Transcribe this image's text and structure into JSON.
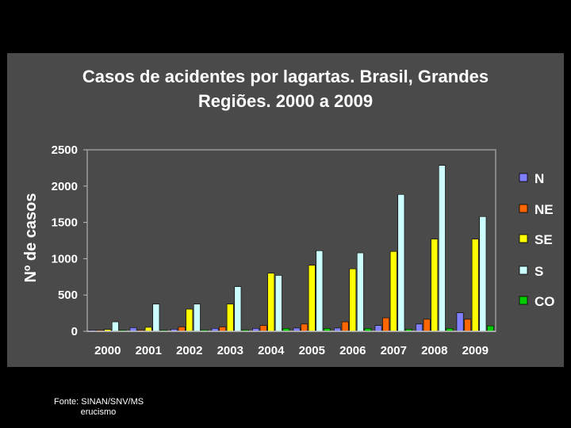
{
  "chart_data": {
    "type": "bar",
    "title_lines": [
      "Casos de acidentes por lagartas. Brasil, Grandes",
      "Regiões. 2000 a 2009"
    ],
    "xlabel": "",
    "ylabel": "Nº de casos",
    "ylim": [
      0,
      2500
    ],
    "yticks": [
      "0",
      "500",
      "1000",
      "1500",
      "2000",
      "2500"
    ],
    "categories": [
      "2000",
      "2001",
      "2002",
      "2003",
      "2004",
      "2005",
      "2006",
      "2007",
      "2008",
      "2009"
    ],
    "legend_position": "right",
    "series": [
      {
        "name": "N",
        "color": "#8080ff",
        "values": [
          5,
          50,
          30,
          40,
          40,
          45,
          45,
          80,
          100,
          255
        ]
      },
      {
        "name": "NE",
        "color": "#ff6600",
        "values": [
          5,
          10,
          60,
          60,
          80,
          100,
          130,
          185,
          165,
          165
        ]
      },
      {
        "name": "SE",
        "color": "#ffff00",
        "values": [
          25,
          55,
          305,
          375,
          800,
          910,
          860,
          1100,
          1270,
          1270
        ]
      },
      {
        "name": "S",
        "color": "#ccffff",
        "values": [
          130,
          375,
          375,
          615,
          770,
          1110,
          1080,
          1885,
          2285,
          1580
        ]
      },
      {
        "name": "CO",
        "color": "#00cc00",
        "values": [
          5,
          10,
          20,
          20,
          40,
          40,
          40,
          30,
          40,
          75
        ]
      }
    ]
  },
  "footnote": {
    "line1": "Fonte: SINAN/SNV/MS",
    "line2": "           erucismo"
  }
}
